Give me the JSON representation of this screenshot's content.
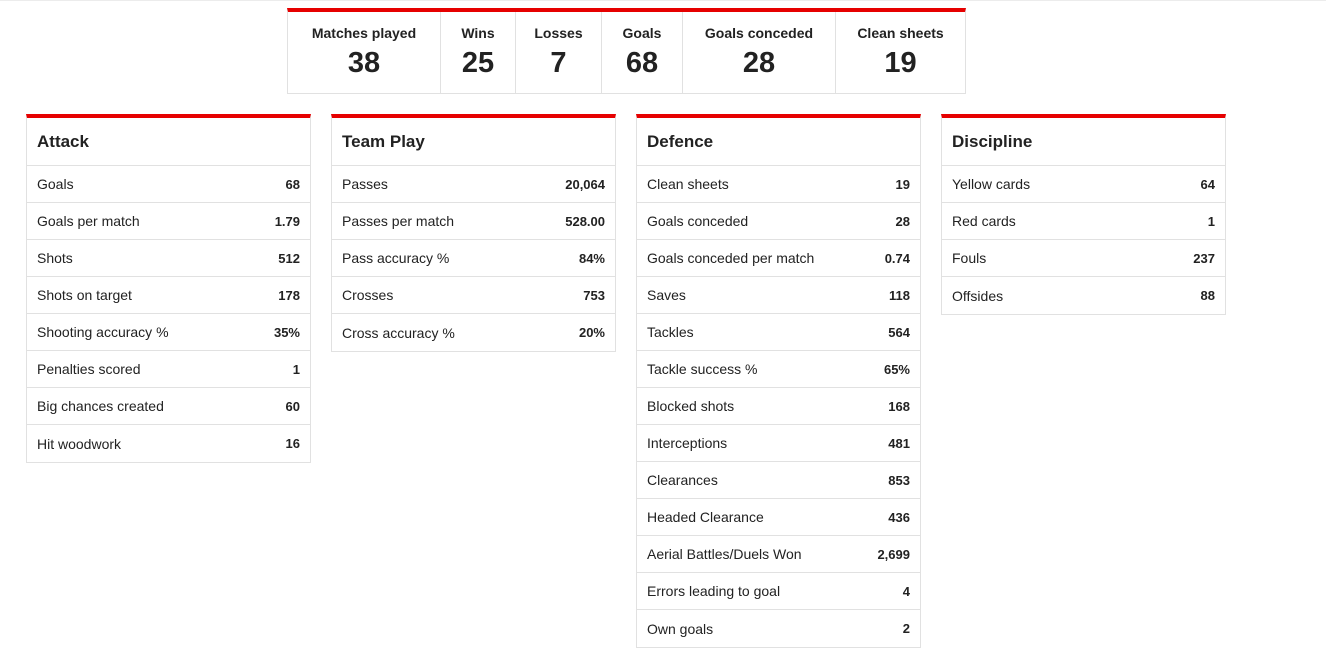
{
  "summary": [
    {
      "label": "Matches played",
      "value": "38"
    },
    {
      "label": "Wins",
      "value": "25"
    },
    {
      "label": "Losses",
      "value": "7"
    },
    {
      "label": "Goals",
      "value": "68"
    },
    {
      "label": "Goals conceded",
      "value": "28"
    },
    {
      "label": "Clean sheets",
      "value": "19"
    }
  ],
  "panels": {
    "attack": {
      "title": "Attack",
      "rows": [
        {
          "label": "Goals",
          "value": "68"
        },
        {
          "label": "Goals per match",
          "value": "1.79"
        },
        {
          "label": "Shots",
          "value": "512"
        },
        {
          "label": "Shots on target",
          "value": "178"
        },
        {
          "label": "Shooting accuracy %",
          "value": "35%"
        },
        {
          "label": "Penalties scored",
          "value": "1"
        },
        {
          "label": "Big chances created",
          "value": "60"
        },
        {
          "label": "Hit woodwork",
          "value": "16"
        }
      ]
    },
    "team_play": {
      "title": "Team Play",
      "rows": [
        {
          "label": "Passes",
          "value": "20,064"
        },
        {
          "label": "Passes per match",
          "value": "528.00"
        },
        {
          "label": "Pass accuracy %",
          "value": "84%"
        },
        {
          "label": "Crosses",
          "value": "753"
        },
        {
          "label": "Cross accuracy %",
          "value": "20%"
        }
      ]
    },
    "defence": {
      "title": "Defence",
      "rows": [
        {
          "label": "Clean sheets",
          "value": "19"
        },
        {
          "label": "Goals conceded",
          "value": "28"
        },
        {
          "label": "Goals conceded per match",
          "value": "0.74"
        },
        {
          "label": "Saves",
          "value": "118"
        },
        {
          "label": "Tackles",
          "value": "564"
        },
        {
          "label": "Tackle success %",
          "value": "65%"
        },
        {
          "label": "Blocked shots",
          "value": "168"
        },
        {
          "label": "Interceptions",
          "value": "481"
        },
        {
          "label": "Clearances",
          "value": "853"
        },
        {
          "label": "Headed Clearance",
          "value": "436"
        },
        {
          "label": "Aerial Battles/Duels Won",
          "value": "2,699"
        },
        {
          "label": "Errors leading to goal",
          "value": "4"
        },
        {
          "label": "Own goals",
          "value": "2"
        }
      ]
    },
    "discipline": {
      "title": "Discipline",
      "rows": [
        {
          "label": "Yellow cards",
          "value": "64"
        },
        {
          "label": "Red cards",
          "value": "1"
        },
        {
          "label": "Fouls",
          "value": "237"
        },
        {
          "label": "Offsides",
          "value": "88"
        }
      ]
    }
  },
  "colors": {
    "accent": "#e60000",
    "border": "#e1e1e1",
    "text": "#222222"
  }
}
